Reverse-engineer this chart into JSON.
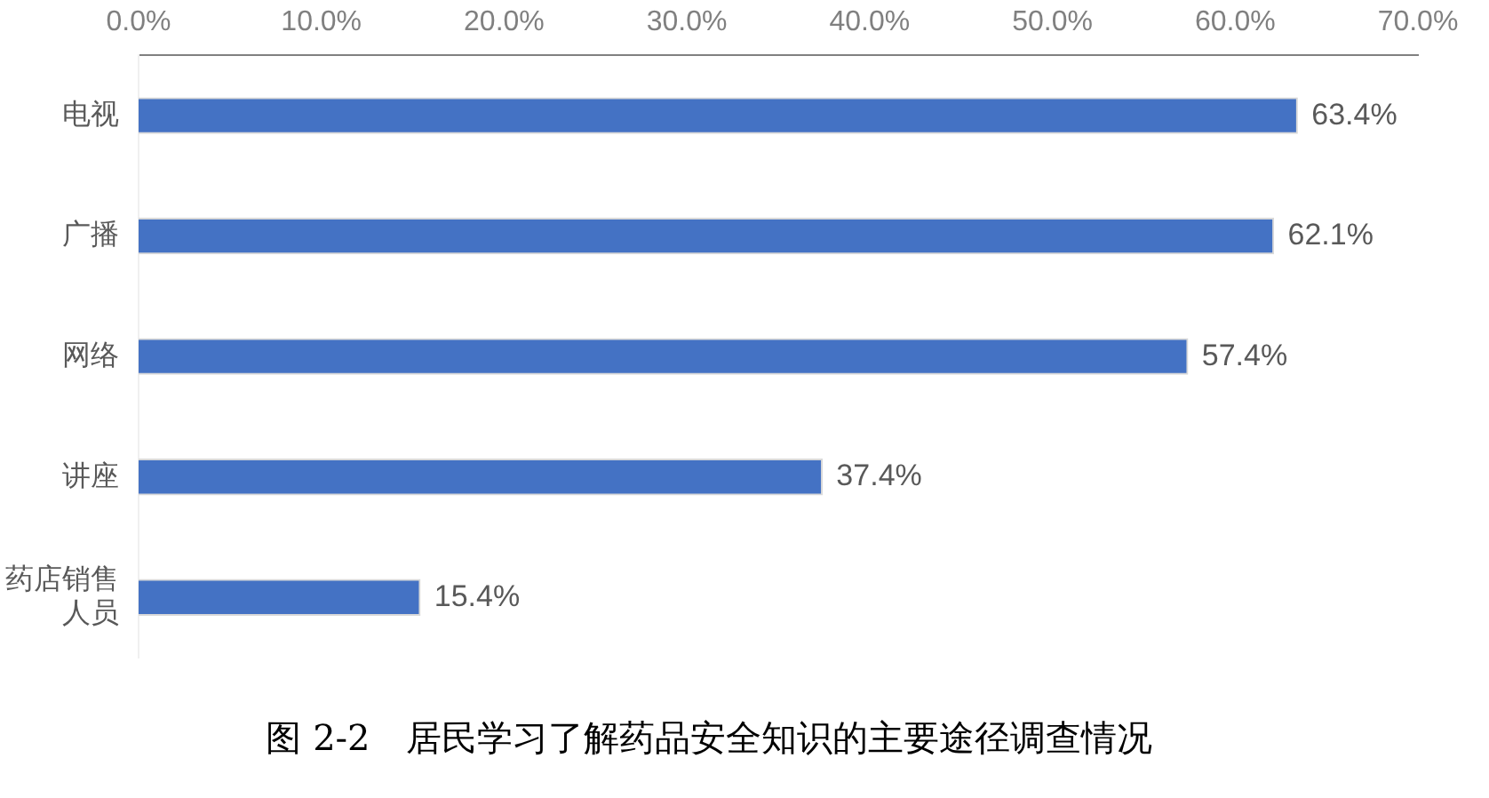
{
  "chart_data": {
    "type": "bar",
    "orientation": "horizontal",
    "title": "图 2-2　居民学习了解药品安全知识的主要途径调查情况",
    "categories": [
      "电视",
      "广播",
      "网络",
      "讲座",
      "药店销售人员"
    ],
    "values": [
      63.4,
      62.1,
      57.4,
      37.4,
      15.4
    ],
    "value_labels": [
      "63.4%",
      "62.1%",
      "57.4%",
      "37.4%",
      "15.4%"
    ],
    "color": "#4472c4",
    "xlim": [
      0,
      70
    ],
    "xticks": [
      {
        "value": 0,
        "label": "0.0%"
      },
      {
        "value": 10,
        "label": "10.0%"
      },
      {
        "value": 20,
        "label": "20.0%"
      },
      {
        "value": 30,
        "label": "30.0%"
      },
      {
        "value": 40,
        "label": "40.0%"
      },
      {
        "value": 50,
        "label": "50.0%"
      },
      {
        "value": 60,
        "label": "60.0%"
      },
      {
        "value": 70,
        "label": "70.0%"
      }
    ],
    "grid": false,
    "legend": false
  }
}
